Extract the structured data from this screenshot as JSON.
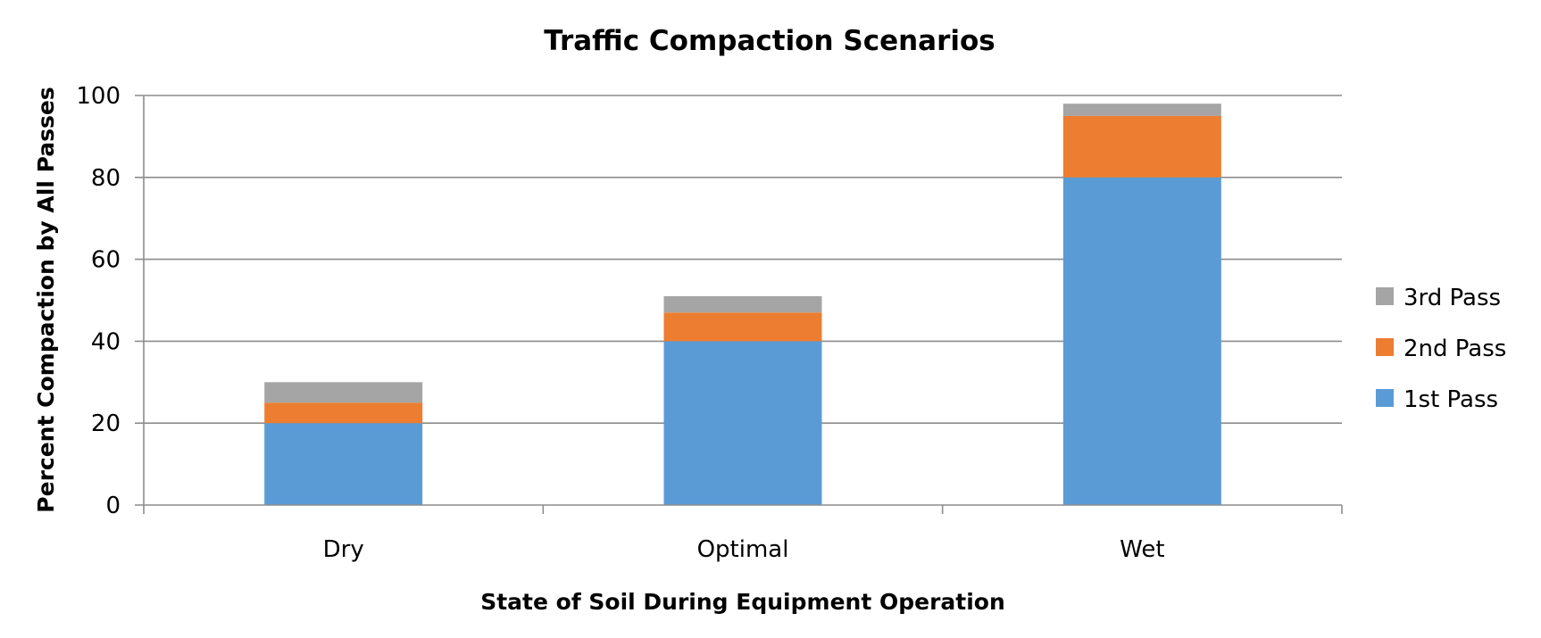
{
  "chart_data": {
    "type": "bar",
    "stacked": true,
    "title": "Traffic Compaction Scenarios",
    "xlabel": "State of Soil During Equipment Operation",
    "ylabel": "Percent Compaction by All Passes",
    "categories": [
      "Dry",
      "Optimal",
      "Wet"
    ],
    "series": [
      {
        "name": "1st Pass",
        "color": "#5b9bd5",
        "values": [
          20,
          40,
          80
        ]
      },
      {
        "name": "2nd Pass",
        "color": "#ed7d31",
        "values": [
          5,
          7,
          15
        ]
      },
      {
        "name": "3rd Pass",
        "color": "#a5a5a5",
        "values": [
          5,
          4,
          3
        ]
      }
    ],
    "ylim": [
      0,
      100
    ],
    "yticks": [
      0,
      20,
      40,
      60,
      80,
      100
    ],
    "grid": true,
    "legend_position": "right",
    "legend_order": [
      "3rd Pass",
      "2nd Pass",
      "1st Pass"
    ]
  }
}
